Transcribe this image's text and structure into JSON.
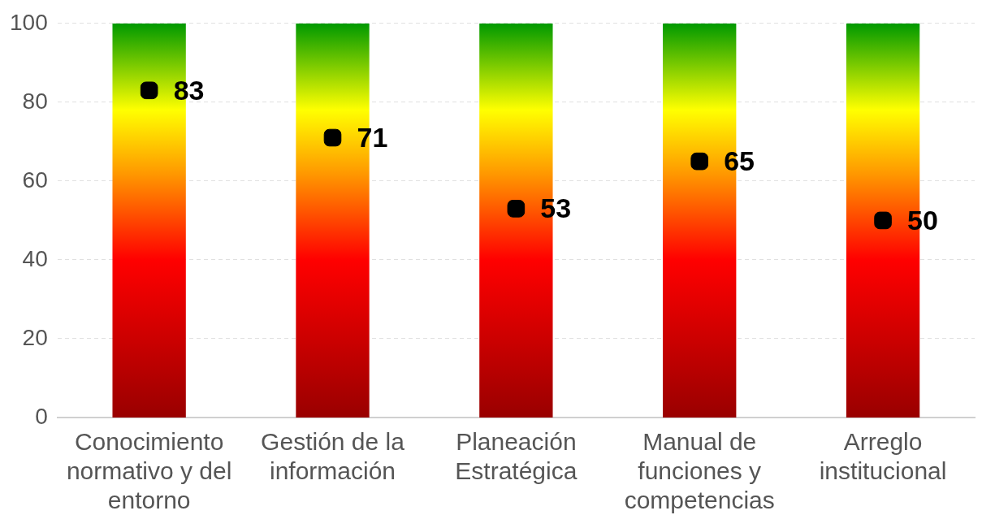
{
  "chart_data": {
    "type": "bar",
    "categories": [
      "Conocimiento normativo y del entorno",
      "Gestión de la información",
      "Planeación Estratégica",
      "Manual de funciones y competencias",
      "Arreglo institucional"
    ],
    "series": [
      {
        "color": "#ff0000",
        "values": [
          100,
          100,
          100,
          100,
          100
        ]
      },
      {
        "type": "scatter",
        "color": "#000000",
        "marker": "square",
        "values": [
          83,
          71,
          53,
          65,
          50
        ],
        "value_labels": [
          "83",
          "71",
          "53",
          "65",
          "50"
        ]
      }
    ],
    "ylim": [
      0,
      100
    ],
    "yticks": [
      0,
      20,
      40,
      60,
      80,
      100
    ],
    "grid": "y",
    "legend": false
  }
}
